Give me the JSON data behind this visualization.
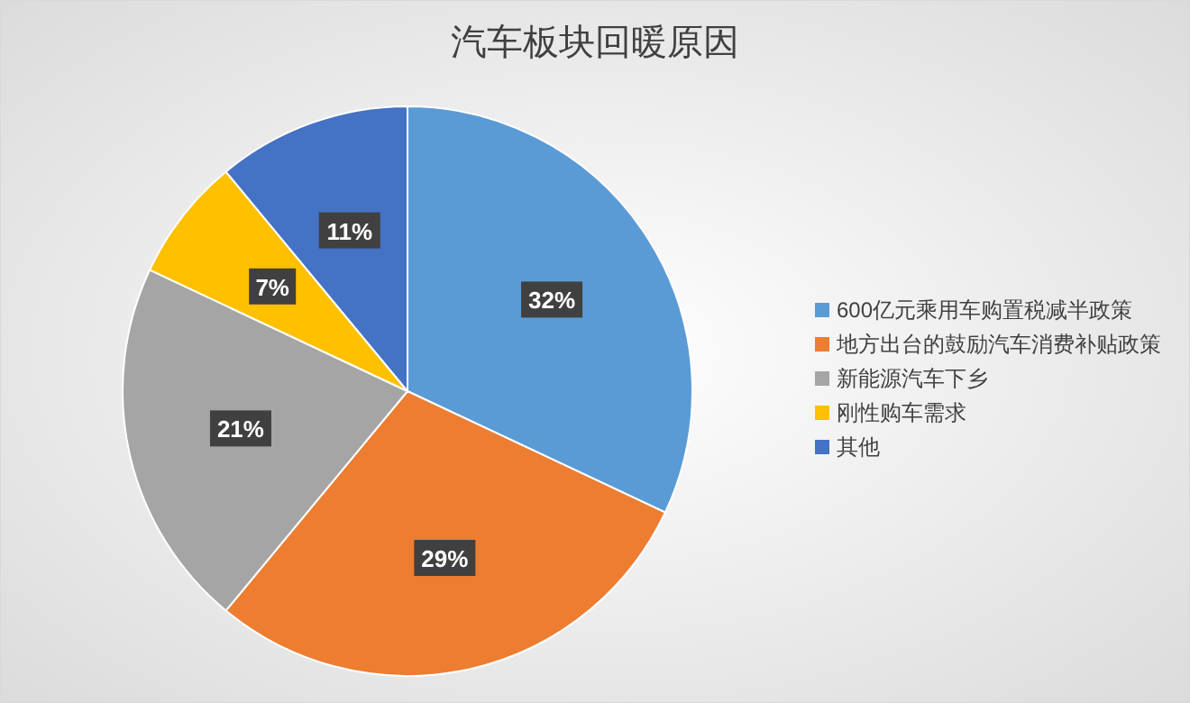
{
  "chart_data": {
    "type": "pie",
    "title": "汽车板块回暖原因",
    "categories": [
      "600亿元乘用车购置税减半政策",
      "地方出台的鼓励汽车消费补贴政策",
      "新能源汽车下乡",
      "刚性购车需求",
      "其他"
    ],
    "values": [
      32,
      29,
      21,
      7,
      11
    ],
    "colors": [
      "#5b9bd5",
      "#ed7d31",
      "#a5a5a5",
      "#ffc000",
      "#4472c4"
    ],
    "value_labels": [
      "32%",
      "29%",
      "21%",
      "7%",
      "11%"
    ],
    "legend": "right"
  }
}
